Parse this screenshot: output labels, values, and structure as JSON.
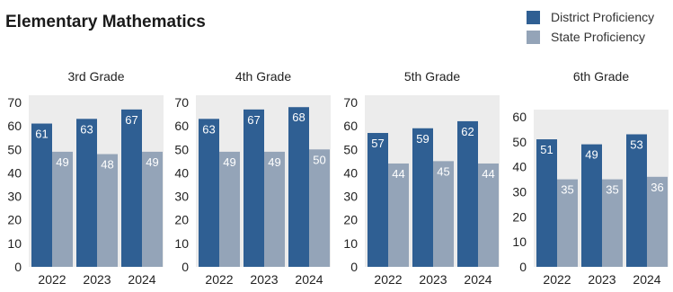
{
  "title": "Elementary Mathematics",
  "legend": {
    "district_label": "District Proficiency",
    "state_label": "State Proficiency"
  },
  "colors": {
    "district": "#2f5f93",
    "state": "#94a4b8",
    "panel": "#ececec",
    "axis_text": "#222222"
  },
  "chart_data": [
    {
      "type": "bar",
      "title": "3rd Grade",
      "categories": [
        "2022",
        "2023",
        "2024"
      ],
      "series": [
        {
          "name": "District Proficiency",
          "values": [
            61,
            63,
            67
          ]
        },
        {
          "name": "State Proficiency",
          "values": [
            49,
            48,
            49
          ]
        }
      ],
      "ylim": [
        0,
        70
      ],
      "yticks": [
        0,
        10,
        20,
        30,
        40,
        50,
        60,
        70
      ],
      "grid": false,
      "legend": "top-right"
    },
    {
      "type": "bar",
      "title": "4th Grade",
      "categories": [
        "2022",
        "2023",
        "2024"
      ],
      "series": [
        {
          "name": "District Proficiency",
          "values": [
            63,
            67,
            68
          ]
        },
        {
          "name": "State Proficiency",
          "values": [
            49,
            49,
            50
          ]
        }
      ],
      "ylim": [
        0,
        70
      ],
      "yticks": [
        0,
        10,
        20,
        30,
        40,
        50,
        60,
        70
      ],
      "grid": false,
      "legend": "top-right"
    },
    {
      "type": "bar",
      "title": "5th Grade",
      "categories": [
        "2022",
        "2023",
        "2024"
      ],
      "series": [
        {
          "name": "District Proficiency",
          "values": [
            57,
            59,
            62
          ]
        },
        {
          "name": "State Proficiency",
          "values": [
            44,
            45,
            44
          ]
        }
      ],
      "ylim": [
        0,
        70
      ],
      "yticks": [
        0,
        10,
        20,
        30,
        40,
        50,
        60,
        70
      ],
      "grid": false,
      "legend": "top-right"
    },
    {
      "type": "bar",
      "title": "6th Grade",
      "categories": [
        "2022",
        "2023",
        "2024"
      ],
      "series": [
        {
          "name": "District Proficiency",
          "values": [
            51,
            49,
            53
          ]
        },
        {
          "name": "State Proficiency",
          "values": [
            35,
            35,
            36
          ]
        }
      ],
      "ylim": [
        0,
        60
      ],
      "yticks": [
        0,
        10,
        20,
        30,
        40,
        50,
        60
      ],
      "grid": false,
      "legend": "top-right"
    }
  ]
}
